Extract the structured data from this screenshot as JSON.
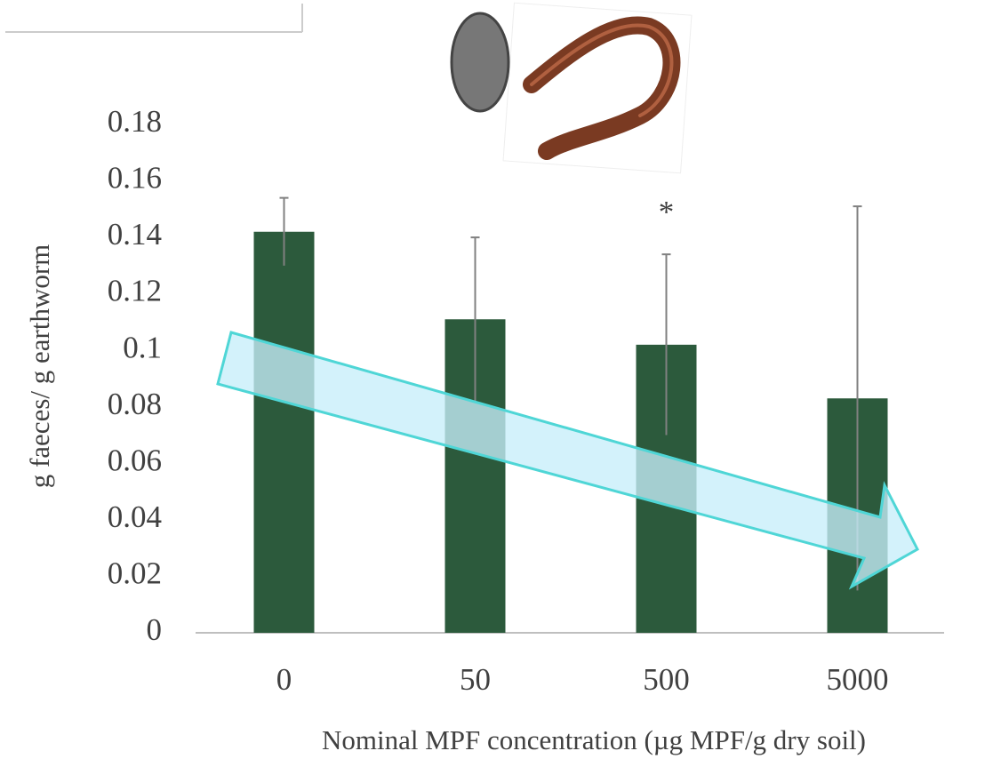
{
  "chart_data": {
    "type": "bar",
    "categories": [
      "0",
      "50",
      "500",
      "5000"
    ],
    "values": [
      0.142,
      0.111,
      0.102,
      0.083
    ],
    "errors": [
      0.012,
      0.029,
      0.032,
      0.068
    ],
    "color": "#2c5a3c",
    "ylim": [
      0,
      0.18
    ],
    "yticks": [
      0,
      0.02,
      0.04,
      0.06,
      0.08,
      0.1,
      0.12,
      0.14,
      0.16,
      0.18
    ],
    "y_label": "g faeces/ g earthworm",
    "x_label": "Nominal MPF concentration (µg MPF/g dry soil)",
    "annotations": [
      {
        "text": "*",
        "category": 2
      }
    ],
    "grid": false
  }
}
